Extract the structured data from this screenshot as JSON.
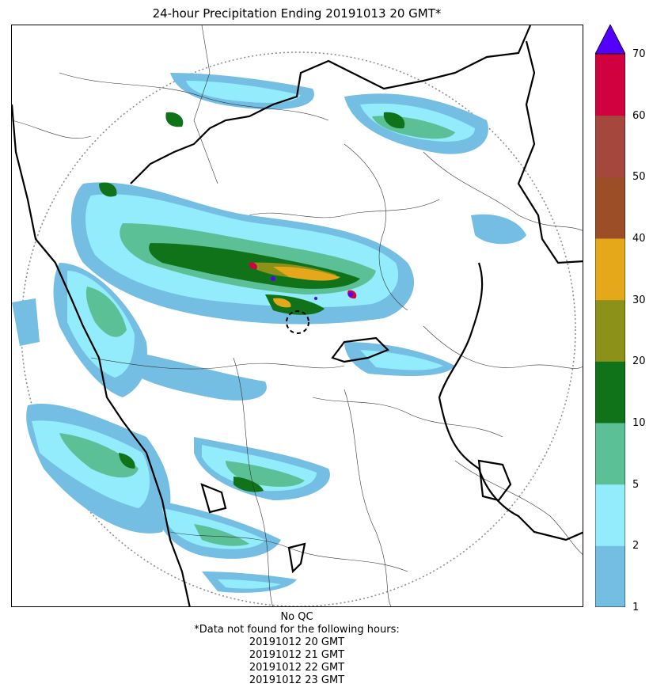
{
  "title": "24-hour Precipitation Ending 20191013 20 GMT*",
  "colorbar": {
    "ticks": [
      "1",
      "2",
      "5",
      "10",
      "20",
      "30",
      "40",
      "50",
      "60",
      "70"
    ],
    "colors": [
      "#74bde3",
      "#92ecfb",
      "#5bc095",
      "#10731a",
      "#8c9219",
      "#e5a81a",
      "#9c4f27",
      "#a5473d",
      "#d1003f"
    ],
    "extend_color": "#5400ff"
  },
  "footer": {
    "qc": "No QC",
    "missing_header": "*Data not found for the following hours:",
    "missing_hours": [
      "20191012 20 GMT",
      "20191012 21 GMT",
      "20191012 22 GMT",
      "20191012 23 GMT"
    ]
  }
}
